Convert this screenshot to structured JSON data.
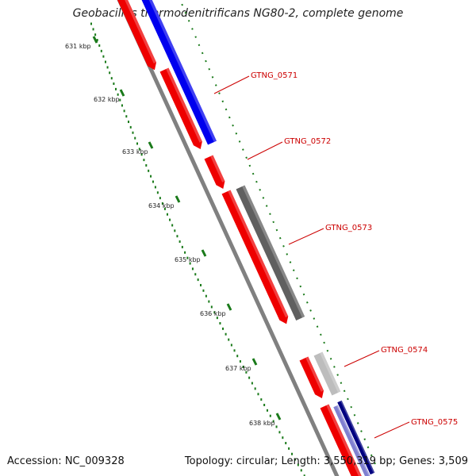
{
  "title": "Geobacillus thermodenitrificans NG80-2, complete genome",
  "footer": {
    "accession": "Accession: NC_009328",
    "summary": "Topology: circular; Length: 3,550,319 bp; Genes: 3,509"
  },
  "colors": {
    "ruler": "#1a7a1a",
    "backbone": "#808080",
    "label": "#cc0000",
    "red": "#ee0000",
    "blue": "#0000ee",
    "dark_gray": "#606060",
    "light_gray": "#bdbdbd",
    "navy": "#000080",
    "lavender": "#8080d0"
  },
  "kbp_ticks": [
    "631 kbp",
    "632 kbp",
    "633 kbp",
    "634 kbp",
    "635 kbp",
    "636 kbp",
    "637 kbp",
    "638 kbp"
  ],
  "genes": [
    {
      "label": "GTNG_0571"
    },
    {
      "label": "GTNG_0572"
    },
    {
      "label": "GTNG_0573"
    },
    {
      "label": "GTNG_0574"
    },
    {
      "label": "GTNG_0575"
    }
  ]
}
